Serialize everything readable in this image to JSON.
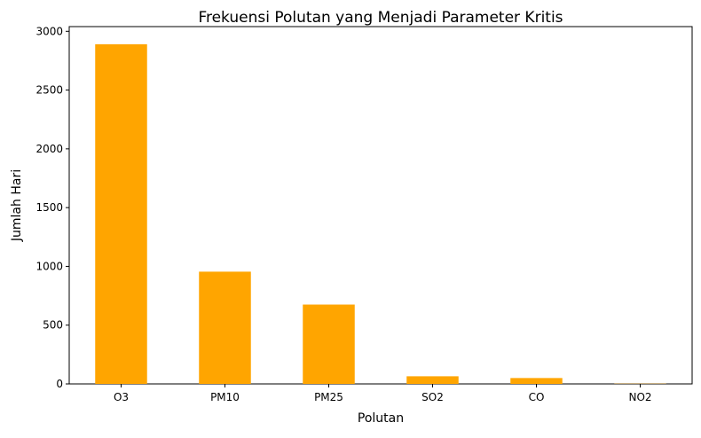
{
  "chart_data": {
    "type": "bar",
    "title": "Frekuensi Polutan yang Menjadi Parameter Kritis",
    "xlabel": "Polutan",
    "ylabel": "Jumlah Hari",
    "categories": [
      "O3",
      "PM10",
      "PM25",
      "SO2",
      "CO",
      "NO2"
    ],
    "values": [
      2890,
      955,
      675,
      65,
      50,
      2
    ],
    "ylim": [
      0,
      3040
    ],
    "yticks": [
      0,
      500,
      1000,
      1500,
      2000,
      2500,
      3000
    ],
    "bar_color": "#FFA500",
    "grid": false,
    "legend": "none"
  }
}
